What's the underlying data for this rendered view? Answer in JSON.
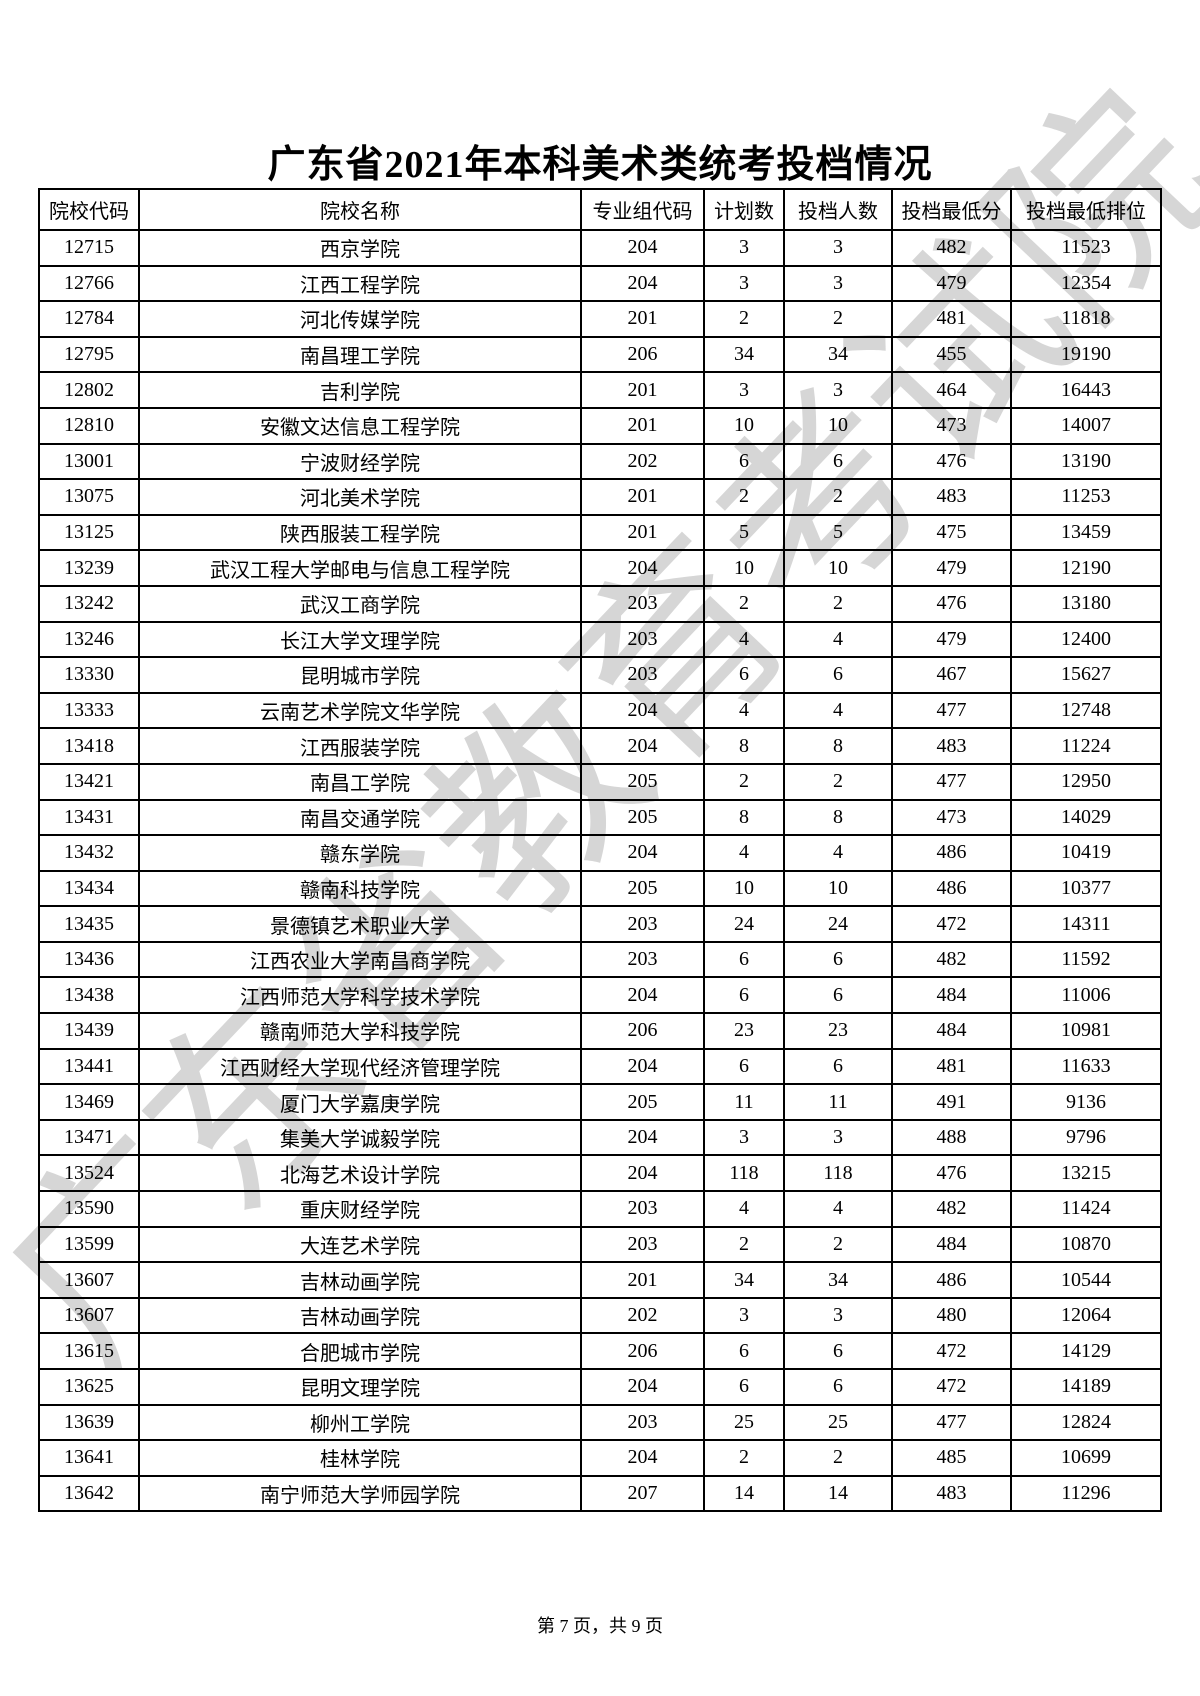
{
  "page": {
    "title": "广东省2021年本科美术类统考投档情况",
    "footer": "第 7 页，共 9 页",
    "watermark": "广东省教育考试院"
  },
  "colors": {
    "ink": "#000000",
    "watermark": "#cccccc",
    "background": "#ffffff"
  },
  "table": {
    "headers": [
      "院校代码",
      "院校名称",
      "专业组代码",
      "计划数",
      "投档人数",
      "投档最低分",
      "投档最低排位"
    ],
    "rows": [
      [
        "12715",
        "西京学院",
        "204",
        "3",
        "3",
        "482",
        "11523"
      ],
      [
        "12766",
        "江西工程学院",
        "204",
        "3",
        "3",
        "479",
        "12354"
      ],
      [
        "12784",
        "河北传媒学院",
        "201",
        "2",
        "2",
        "481",
        "11818"
      ],
      [
        "12795",
        "南昌理工学院",
        "206",
        "34",
        "34",
        "455",
        "19190"
      ],
      [
        "12802",
        "吉利学院",
        "201",
        "3",
        "3",
        "464",
        "16443"
      ],
      [
        "12810",
        "安徽文达信息工程学院",
        "201",
        "10",
        "10",
        "473",
        "14007"
      ],
      [
        "13001",
        "宁波财经学院",
        "202",
        "6",
        "6",
        "476",
        "13190"
      ],
      [
        "13075",
        "河北美术学院",
        "201",
        "2",
        "2",
        "483",
        "11253"
      ],
      [
        "13125",
        "陕西服装工程学院",
        "201",
        "5",
        "5",
        "475",
        "13459"
      ],
      [
        "13239",
        "武汉工程大学邮电与信息工程学院",
        "204",
        "10",
        "10",
        "479",
        "12190"
      ],
      [
        "13242",
        "武汉工商学院",
        "203",
        "2",
        "2",
        "476",
        "13180"
      ],
      [
        "13246",
        "长江大学文理学院",
        "203",
        "4",
        "4",
        "479",
        "12400"
      ],
      [
        "13330",
        "昆明城市学院",
        "203",
        "6",
        "6",
        "467",
        "15627"
      ],
      [
        "13333",
        "云南艺术学院文华学院",
        "204",
        "4",
        "4",
        "477",
        "12748"
      ],
      [
        "13418",
        "江西服装学院",
        "204",
        "8",
        "8",
        "483",
        "11224"
      ],
      [
        "13421",
        "南昌工学院",
        "205",
        "2",
        "2",
        "477",
        "12950"
      ],
      [
        "13431",
        "南昌交通学院",
        "205",
        "8",
        "8",
        "473",
        "14029"
      ],
      [
        "13432",
        "赣东学院",
        "204",
        "4",
        "4",
        "486",
        "10419"
      ],
      [
        "13434",
        "赣南科技学院",
        "205",
        "10",
        "10",
        "486",
        "10377"
      ],
      [
        "13435",
        "景德镇艺术职业大学",
        "203",
        "24",
        "24",
        "472",
        "14311"
      ],
      [
        "13436",
        "江西农业大学南昌商学院",
        "203",
        "6",
        "6",
        "482",
        "11592"
      ],
      [
        "13438",
        "江西师范大学科学技术学院",
        "204",
        "6",
        "6",
        "484",
        "11006"
      ],
      [
        "13439",
        "赣南师范大学科技学院",
        "206",
        "23",
        "23",
        "484",
        "10981"
      ],
      [
        "13441",
        "江西财经大学现代经济管理学院",
        "204",
        "6",
        "6",
        "481",
        "11633"
      ],
      [
        "13469",
        "厦门大学嘉庚学院",
        "205",
        "11",
        "11",
        "491",
        "9136"
      ],
      [
        "13471",
        "集美大学诚毅学院",
        "204",
        "3",
        "3",
        "488",
        "9796"
      ],
      [
        "13524",
        "北海艺术设计学院",
        "204",
        "118",
        "118",
        "476",
        "13215"
      ],
      [
        "13590",
        "重庆财经学院",
        "203",
        "4",
        "4",
        "482",
        "11424"
      ],
      [
        "13599",
        "大连艺术学院",
        "203",
        "2",
        "2",
        "484",
        "10870"
      ],
      [
        "13607",
        "吉林动画学院",
        "201",
        "34",
        "34",
        "486",
        "10544"
      ],
      [
        "13607",
        "吉林动画学院",
        "202",
        "3",
        "3",
        "480",
        "12064"
      ],
      [
        "13615",
        "合肥城市学院",
        "206",
        "6",
        "6",
        "472",
        "14129"
      ],
      [
        "13625",
        "昆明文理学院",
        "204",
        "6",
        "6",
        "472",
        "14189"
      ],
      [
        "13639",
        "柳州工学院",
        "203",
        "25",
        "25",
        "477",
        "12824"
      ],
      [
        "13641",
        "桂林学院",
        "204",
        "2",
        "2",
        "485",
        "10699"
      ],
      [
        "13642",
        "南宁师范大学师园学院",
        "207",
        "14",
        "14",
        "483",
        "11296"
      ]
    ]
  }
}
